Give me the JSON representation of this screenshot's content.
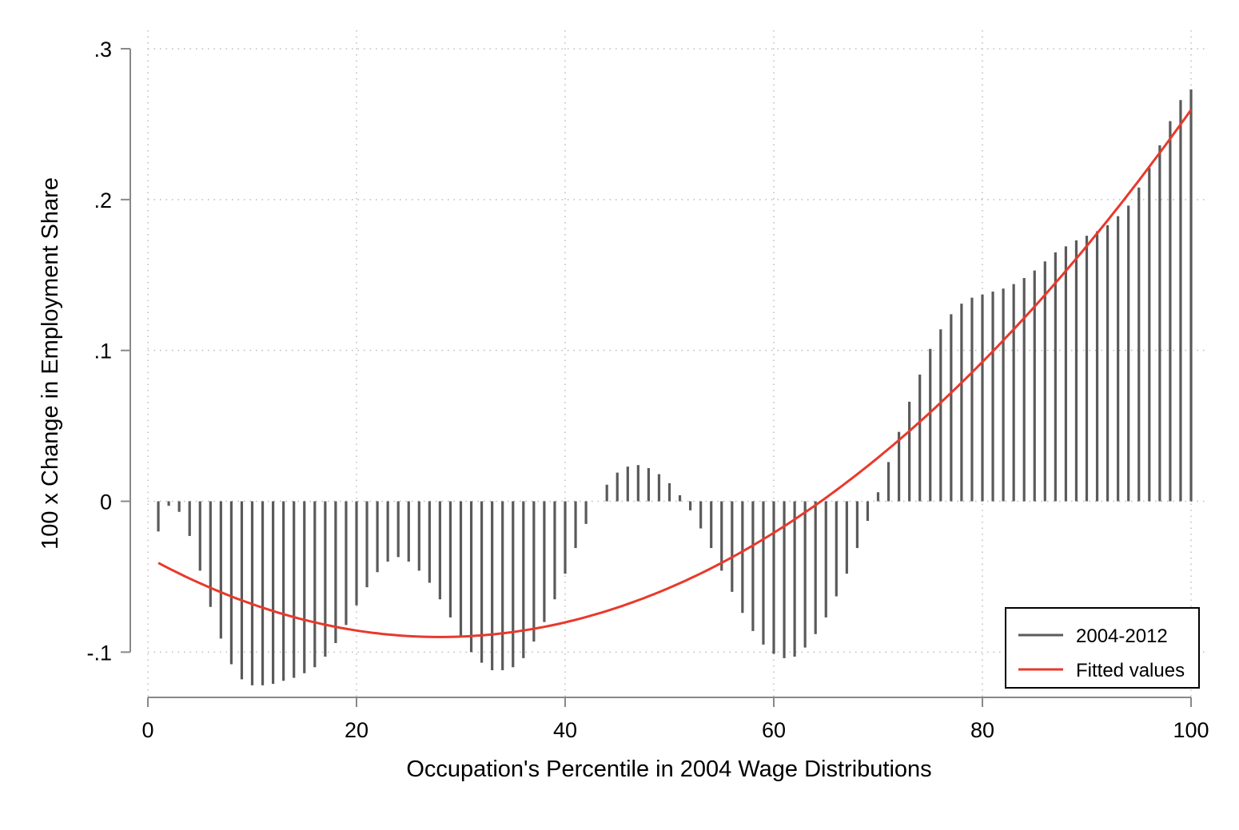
{
  "chart_data": {
    "type": "bar",
    "xlabel": "Occupation's Percentile in 2004 Wage Distributions",
    "ylabel": "100 x Change in Employment Share",
    "xlim": [
      0,
      100
    ],
    "ylim": [
      -0.13,
      0.3
    ],
    "x_ticks": [
      0,
      20,
      40,
      60,
      80,
      100
    ],
    "x_tick_labels": [
      "0",
      "20",
      "40",
      "60",
      "80",
      "100"
    ],
    "y_ticks": [
      -0.1,
      0,
      0.1,
      0.2,
      0.3
    ],
    "y_tick_labels": [
      "-.1",
      "0",
      ".1",
      ".2",
      ".3"
    ],
    "grid": true,
    "legend_position": "bottom-right",
    "series": [
      {
        "name": "2004-2012",
        "kind": "spike",
        "color": "#5a5a5a",
        "x": [
          1,
          2,
          3,
          4,
          5,
          6,
          7,
          8,
          9,
          10,
          11,
          12,
          13,
          14,
          15,
          16,
          17,
          18,
          19,
          20,
          21,
          22,
          23,
          24,
          25,
          26,
          27,
          28,
          29,
          30,
          31,
          32,
          33,
          34,
          35,
          36,
          37,
          38,
          39,
          40,
          41,
          42,
          43,
          44,
          45,
          46,
          47,
          48,
          49,
          50,
          51,
          52,
          53,
          54,
          55,
          56,
          57,
          58,
          59,
          60,
          61,
          62,
          63,
          64,
          65,
          66,
          67,
          68,
          69,
          70,
          71,
          72,
          73,
          74,
          75,
          76,
          77,
          78,
          79,
          80,
          81,
          82,
          83,
          84,
          85,
          86,
          87,
          88,
          89,
          90,
          91,
          92,
          93,
          94,
          95,
          96,
          97,
          98,
          99,
          100
        ],
        "values": [
          -0.02,
          -0.003,
          -0.007,
          -0.023,
          -0.046,
          -0.07,
          -0.091,
          -0.108,
          -0.118,
          -0.122,
          -0.122,
          -0.121,
          -0.119,
          -0.117,
          -0.114,
          -0.11,
          -0.103,
          -0.094,
          -0.082,
          -0.069,
          -0.057,
          -0.047,
          -0.04,
          -0.037,
          -0.04,
          -0.046,
          -0.054,
          -0.065,
          -0.077,
          -0.089,
          -0.1,
          -0.107,
          -0.112,
          -0.112,
          -0.11,
          -0.104,
          -0.093,
          -0.08,
          -0.065,
          -0.048,
          -0.031,
          -0.015,
          0.0,
          0.011,
          0.019,
          0.023,
          0.024,
          0.022,
          0.018,
          0.012,
          0.004,
          -0.006,
          -0.018,
          -0.031,
          -0.046,
          -0.06,
          -0.074,
          -0.086,
          -0.095,
          -0.101,
          -0.104,
          -0.103,
          -0.097,
          -0.088,
          -0.077,
          -0.063,
          -0.048,
          -0.031,
          -0.013,
          0.006,
          0.026,
          0.046,
          0.066,
          0.084,
          0.101,
          0.114,
          0.124,
          0.131,
          0.135,
          0.137,
          0.139,
          0.141,
          0.144,
          0.148,
          0.153,
          0.159,
          0.165,
          0.169,
          0.173,
          0.176,
          0.179,
          0.183,
          0.189,
          0.196,
          0.208,
          0.221,
          0.236,
          0.252,
          0.266,
          0.273
        ]
      },
      {
        "name": "Fitted values",
        "kind": "line",
        "color": "#e8392b",
        "quadratic_fit": {
          "a": 6.74e-05,
          "b": -0.003773,
          "c": -0.03717
        },
        "x_range": [
          1,
          100
        ]
      }
    ]
  }
}
